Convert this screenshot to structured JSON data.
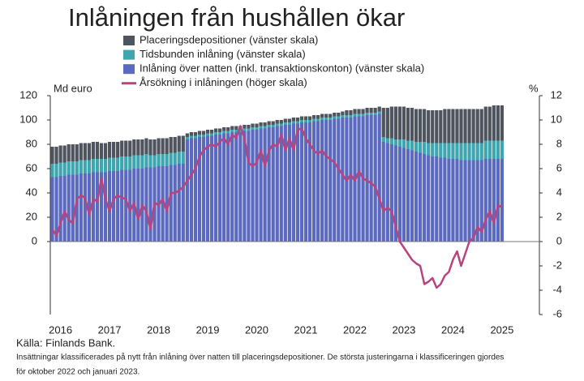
{
  "chart_data": {
    "type": "bar",
    "stacked": true,
    "title": "Inlåningen från hushållen ökar",
    "y_label": "Md euro",
    "y2_label": "%",
    "source": "Källa: Finlands Bank.",
    "note": [
      "Insättningar klassificerades på nytt från inlåning över natten till placeringsdepositioner. De största justeringarna i klassificeringen gjordes",
      "för oktober 2022 och januari 2023."
    ],
    "categories": [
      "2016",
      null,
      null,
      null,
      null,
      null,
      null,
      null,
      null,
      null,
      null,
      null,
      "2017",
      null,
      null,
      null,
      null,
      null,
      null,
      null,
      null,
      null,
      null,
      null,
      "2018",
      null,
      null,
      null,
      null,
      null,
      null,
      null,
      null,
      null,
      null,
      null,
      "2019",
      null,
      null,
      null,
      null,
      null,
      null,
      null,
      null,
      null,
      null,
      null,
      "2020",
      null,
      null,
      null,
      null,
      null,
      null,
      null,
      null,
      null,
      null,
      null,
      "2021",
      null,
      null,
      null,
      null,
      null,
      null,
      null,
      null,
      null,
      null,
      null,
      "2022",
      null,
      null,
      null,
      null,
      null,
      null,
      null,
      null,
      null,
      null,
      null,
      "2023",
      null,
      null,
      null,
      null,
      null,
      null,
      null,
      null,
      null,
      null,
      null,
      "2024",
      null,
      null,
      null,
      null,
      null,
      null,
      null,
      null,
      null,
      null,
      null,
      "2025",
      null,
      null
    ],
    "ylim": [
      -60,
      120
    ],
    "yticks": [
      0,
      20,
      40,
      60,
      80,
      100,
      120
    ],
    "y2lim": [
      -6,
      12
    ],
    "y2ticks": [
      -6,
      -4,
      -2,
      0,
      2,
      4,
      6,
      8,
      10,
      12
    ],
    "legend": "top",
    "series": [
      {
        "name": "Placeringsdepositioner (vänster skala)",
        "color": "#4f555e",
        "values": [
          14,
          14,
          14,
          14,
          14,
          14,
          14,
          14,
          14,
          14,
          14,
          14,
          13,
          13,
          13,
          13,
          13,
          13,
          13,
          13,
          13,
          13,
          13,
          13,
          13,
          13,
          13,
          13,
          13,
          13,
          13,
          13,
          13,
          3,
          3,
          3,
          3,
          3,
          3,
          3,
          3,
          3,
          3,
          3,
          3,
          3,
          3,
          3,
          3,
          3,
          3,
          3,
          3,
          3,
          3,
          3,
          3,
          3,
          3,
          3,
          3,
          3,
          3,
          3,
          3,
          3,
          3,
          3,
          3,
          3,
          3,
          3,
          4,
          4,
          4,
          4,
          4,
          4,
          4,
          4,
          4,
          24,
          25,
          26,
          27,
          27,
          27,
          27,
          27,
          27,
          27,
          27,
          27,
          27,
          27,
          27,
          28,
          28,
          28,
          28,
          28,
          28,
          28,
          28,
          28,
          28,
          28,
          28,
          29,
          29,
          29
        ]
      },
      {
        "name": "Tidsbunden inlåning (vänster skala)",
        "color": "#3fa6b0",
        "values": [
          11,
          11,
          11,
          11,
          11,
          11,
          11,
          11,
          11,
          11,
          11,
          11,
          11,
          11,
          11,
          11,
          11,
          11,
          11,
          11,
          11,
          11,
          11,
          11,
          10,
          10,
          10,
          10,
          10,
          10,
          10,
          10,
          10,
          2,
          2,
          2,
          2,
          2,
          2,
          2,
          2,
          2,
          2,
          2,
          2,
          2,
          2,
          2,
          2,
          2,
          2,
          2,
          2,
          2,
          2,
          2,
          2,
          2,
          2,
          2,
          2,
          2,
          2,
          2,
          2,
          2,
          2,
          2,
          2,
          2,
          2,
          2,
          2,
          2,
          2,
          2,
          2,
          2,
          2,
          2,
          2,
          4,
          4,
          5,
          5,
          6,
          7,
          7,
          8,
          8,
          9,
          10,
          10,
          11,
          11,
          12,
          12,
          13,
          13,
          13,
          14,
          14,
          14,
          14,
          14,
          14,
          15,
          15,
          15,
          15,
          15
        ]
      },
      {
        "name": "Inlåning över natten (inkl. transaktionskonton) (vänster skala)",
        "color": "#5b69be",
        "values": [
          53,
          53,
          54,
          54,
          55,
          55,
          55,
          56,
          56,
          56,
          57,
          57,
          57,
          57,
          58,
          58,
          58,
          59,
          59,
          59,
          60,
          60,
          60,
          61,
          61,
          61,
          62,
          62,
          62,
          63,
          63,
          64,
          64,
          84,
          85,
          85,
          86,
          86,
          87,
          87,
          88,
          88,
          89,
          89,
          90,
          90,
          90,
          91,
          91,
          92,
          92,
          93,
          93,
          94,
          94,
          95,
          95,
          96,
          96,
          97,
          97,
          98,
          98,
          98,
          99,
          99,
          100,
          100,
          100,
          101,
          101,
          102,
          102,
          102,
          103,
          103,
          103,
          104,
          104,
          104,
          105,
          82,
          81,
          80,
          79,
          78,
          77,
          76,
          75,
          74,
          73,
          72,
          71,
          70,
          70,
          69,
          69,
          68,
          68,
          68,
          67,
          67,
          67,
          67,
          67,
          67,
          68,
          68,
          68,
          68,
          68
        ]
      },
      {
        "name": "Årsökning i inlåningen (höger skala)",
        "type": "line",
        "axis": "y2",
        "color": "#b9437f",
        "values": [
          1.0,
          0.5,
          1.5,
          2.5,
          1.8,
          1.5,
          3.5,
          3.8,
          3.6,
          2.2,
          3.5,
          3.3,
          5.2,
          3.5,
          2.5,
          3.5,
          3.8,
          3.6,
          3.5,
          2.5,
          3.2,
          1.8,
          3.0,
          2.5,
          1.0,
          3.2,
          3.0,
          3.5,
          2.5,
          4.0,
          4.0,
          4.2,
          4.5,
          5.0,
          5.5,
          6.0,
          7.0,
          7.5,
          7.8,
          8.0,
          7.8,
          8.2,
          8.5,
          8.0,
          8.8,
          8.5,
          9.5,
          8.5,
          6.5,
          6.2,
          6.5,
          7.5,
          6.2,
          7.5,
          8.0,
          7.8,
          8.8,
          7.5,
          8.5,
          7.5,
          9.2,
          9.3,
          8.5,
          8.0,
          7.5,
          7.2,
          7.5,
          7.0,
          6.8,
          6.5,
          6.0,
          5.5,
          5.0,
          5.5,
          5.0,
          5.8,
          5.2,
          5.0,
          4.8,
          4.5,
          3.5,
          2.5,
          2.8,
          2.5,
          1.2,
          0.0,
          -0.5,
          -1.0,
          -1.5,
          -1.8,
          -2.0,
          -3.5,
          -3.3,
          -3.0,
          -3.8,
          -3.5,
          -2.8,
          -2.5,
          -1.5,
          -0.8,
          -2.0,
          -1.0,
          0.0,
          0.3,
          1.2,
          0.8,
          1.8,
          2.5,
          1.5,
          3.0,
          2.8
        ]
      }
    ]
  }
}
